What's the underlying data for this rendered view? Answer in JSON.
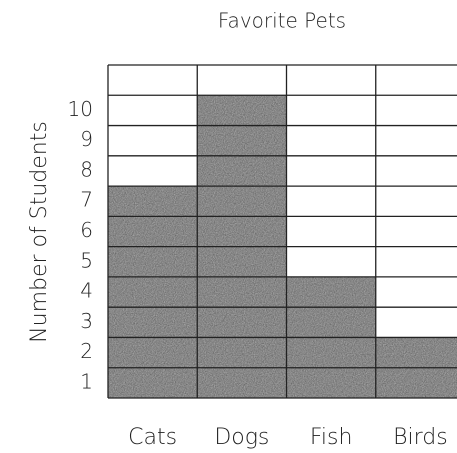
{
  "chart_data": {
    "type": "bar",
    "title": "Favorite Pets",
    "ylabel": "Number of Students",
    "categories": [
      "Cats",
      "Dogs",
      "Fish",
      "Birds"
    ],
    "values": [
      7,
      10,
      4,
      2
    ],
    "color": "#9a9a9a",
    "ylim": [
      0,
      11
    ],
    "yticks": [
      1,
      2,
      3,
      4,
      5,
      6,
      7,
      8,
      9,
      10
    ],
    "grid": true
  }
}
